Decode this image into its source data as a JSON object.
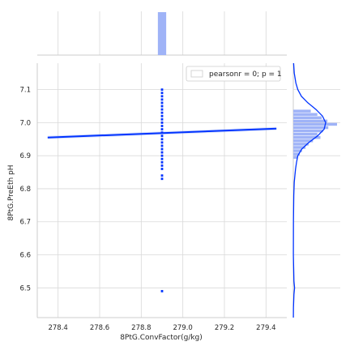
{
  "chart_data": {
    "type": "scatter",
    "kind": "jointplot",
    "xlabel": "8PtG.ConvFactor(g/kg)",
    "ylabel": "8PtG.PreEth pH",
    "xlim": [
      278.3,
      279.5
    ],
    "ylim": [
      6.41,
      7.18
    ],
    "x_ticks": [
      "278.4",
      "278.6",
      "278.8",
      "279.0",
      "279.2",
      "279.4"
    ],
    "y_ticks": [
      "6.5",
      "6.6",
      "6.7",
      "6.8",
      "6.9",
      "7.0",
      "7.1"
    ],
    "grid": true,
    "legend": {
      "text": "pearsonr = 0; p = 1",
      "placement": "top-right"
    },
    "scatter_x": 278.9,
    "scatter_y": [
      7.1,
      7.09,
      7.08,
      7.07,
      7.06,
      7.05,
      7.04,
      7.03,
      7.02,
      7.01,
      7.0,
      6.99,
      6.98,
      6.97,
      6.96,
      6.95,
      6.94,
      6.93,
      6.92,
      6.91,
      6.9,
      6.89,
      6.88,
      6.87,
      6.86,
      6.84,
      6.83,
      6.49
    ],
    "regression": {
      "x": [
        278.35,
        279.45
      ],
      "y": [
        6.955,
        6.982
      ]
    },
    "x_marginal": {
      "bin_range": [
        278.88,
        278.92
      ],
      "relative_height": 1.0
    },
    "y_marginal": {
      "bins": [
        {
          "range": [
            7.03,
            7.04
          ],
          "value": 0.4
        },
        {
          "range": [
            7.02,
            7.03
          ],
          "value": 0.55
        },
        {
          "range": [
            7.01,
            7.02
          ],
          "value": 0.65
        },
        {
          "range": [
            7.0,
            7.01
          ],
          "value": 0.78
        },
        {
          "range": [
            6.99,
            7.0
          ],
          "value": 1.0
        },
        {
          "range": [
            6.98,
            6.99
          ],
          "value": 0.8
        },
        {
          "range": [
            6.97,
            6.98
          ],
          "value": 0.68
        },
        {
          "range": [
            6.96,
            6.97
          ],
          "value": 0.55
        },
        {
          "range": [
            6.95,
            6.96
          ],
          "value": 0.62
        },
        {
          "range": [
            6.94,
            6.95
          ],
          "value": 0.45
        },
        {
          "range": [
            6.93,
            6.94
          ],
          "value": 0.35
        },
        {
          "range": [
            6.92,
            6.93
          ],
          "value": 0.28
        },
        {
          "range": [
            6.91,
            6.92
          ],
          "value": 0.2
        },
        {
          "range": [
            6.9,
            6.91
          ],
          "value": 0.15
        },
        {
          "range": [
            6.89,
            6.9
          ],
          "value": 0.1
        }
      ],
      "kde": [
        [
          7.18,
          0.01
        ],
        [
          7.15,
          0.03
        ],
        [
          7.12,
          0.08
        ],
        [
          7.1,
          0.14
        ],
        [
          7.08,
          0.25
        ],
        [
          7.06,
          0.45
        ],
        [
          7.04,
          0.7
        ],
        [
          7.02,
          0.9
        ],
        [
          7.0,
          1.0
        ],
        [
          6.98,
          0.95
        ],
        [
          6.96,
          0.75
        ],
        [
          6.94,
          0.48
        ],
        [
          6.92,
          0.26
        ],
        [
          6.9,
          0.14
        ],
        [
          6.88,
          0.1
        ],
        [
          6.86,
          0.07
        ],
        [
          6.84,
          0.05
        ],
        [
          6.82,
          0.03
        ],
        [
          6.78,
          0.015
        ],
        [
          6.74,
          0.01
        ],
        [
          6.7,
          0.005
        ],
        [
          6.6,
          0.003
        ],
        [
          6.52,
          0.02
        ],
        [
          6.5,
          0.04
        ],
        [
          6.48,
          0.02
        ],
        [
          6.44,
          0.005
        ],
        [
          6.41,
          0.002
        ]
      ]
    },
    "colors": {
      "points": "#0033ff",
      "line": "#0033ff",
      "hist": "#9fb3f7",
      "kde": "#0033ff",
      "band": "#8ea6f7",
      "grid": "#d9d9d9"
    }
  }
}
